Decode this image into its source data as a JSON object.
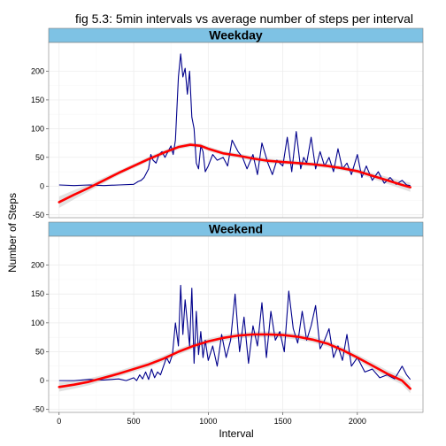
{
  "chart_data": {
    "type": "line",
    "title": "fig 5.3: 5min intervals vs average number of steps per interval",
    "xlabel": "Interval",
    "ylabel": "Number of Steps",
    "xlim": [
      -70,
      2440
    ],
    "ylim": [
      -55,
      250
    ],
    "x_ticks": [
      0,
      500,
      1000,
      1500,
      2000
    ],
    "x_tick_labels": [
      "0",
      "500",
      "1000",
      "1500",
      "2000"
    ],
    "y_ticks": [
      -50,
      0,
      50,
      100,
      150,
      200
    ],
    "y_tick_labels": [
      "-50",
      "0",
      "50",
      "100",
      "150",
      "200"
    ],
    "grid": true,
    "colors": {
      "steps_line": "#00008b",
      "smooth_line": "#ff0000",
      "ribbon": "#bebebe",
      "strip_fill": "#7ec2e4",
      "panel_border": "#7f7f7f",
      "grid": "#ebebeb"
    },
    "panels": [
      {
        "label": "Weekday",
        "series": [
          {
            "x": [
              0,
              100,
              200,
              300,
              400,
              500,
              530,
              550,
              570,
              600,
              615,
              630,
              650,
              670,
              690,
              710,
              730,
              750,
              765,
              780,
              800,
              815,
              830,
              845,
              860,
              875,
              890,
              905,
              920,
              935,
              950,
              965,
              980,
              1000,
              1030,
              1060,
              1100,
              1130,
              1160,
              1200,
              1230,
              1260,
              1300,
              1330,
              1360,
              1400,
              1430,
              1460,
              1500,
              1530,
              1560,
              1590,
              1620,
              1640,
              1660,
              1690,
              1720,
              1750,
              1780,
              1810,
              1840,
              1870,
              1900,
              1930,
              1960,
              2000,
              2030,
              2060,
              2100,
              2140,
              2180,
              2220,
              2260,
              2300,
              2330,
              2355
            ],
            "y": [
              2,
              1,
              2,
              1,
              2,
              3,
              8,
              10,
              15,
              30,
              55,
              45,
              40,
              55,
              60,
              50,
              60,
              70,
              55,
              80,
              190,
              230,
              190,
              205,
              160,
              200,
              120,
              100,
              40,
              30,
              70,
              60,
              25,
              35,
              55,
              45,
              50,
              35,
              80,
              60,
              50,
              30,
              55,
              20,
              75,
              40,
              20,
              45,
              35,
              85,
              25,
              95,
              30,
              50,
              40,
              85,
              30,
              60,
              35,
              50,
              25,
              65,
              30,
              40,
              20,
              55,
              15,
              35,
              10,
              25,
              5,
              15,
              3,
              10,
              2,
              1
            ]
          },
          {
            "name": "smooth",
            "x": [
              0,
              100,
              200,
              300,
              400,
              500,
              600,
              700,
              800,
              880,
              950,
              1000,
              1100,
              1200,
              1300,
              1400,
              1500,
              1600,
              1700,
              1800,
              1900,
              2000,
              2100,
              2200,
              2300,
              2355
            ],
            "y": [
              -28,
              -15,
              -3,
              10,
              23,
              35,
              47,
              58,
              68,
              72,
              70,
              65,
              57,
              53,
              48,
              44,
              42,
              40,
              38,
              35,
              31,
              26,
              18,
              10,
              2,
              -2
            ],
            "band": [
              10,
              8,
              6,
              5,
              4,
              4,
              4,
              4,
              4,
              4,
              4,
              4,
              4,
              4,
              4,
              4,
              4,
              4,
              4,
              4,
              4,
              4,
              5,
              6,
              7,
              8
            ]
          }
        ]
      },
      {
        "label": "Weekend",
        "series": [
          {
            "x": [
              0,
              100,
              200,
              300,
              400,
              450,
              500,
              520,
              540,
              560,
              580,
              600,
              620,
              640,
              660,
              680,
              700,
              720,
              740,
              760,
              780,
              800,
              815,
              830,
              845,
              860,
              875,
              890,
              905,
              920,
              935,
              950,
              965,
              980,
              1000,
              1030,
              1060,
              1090,
              1120,
              1150,
              1180,
              1210,
              1240,
              1270,
              1300,
              1330,
              1360,
              1390,
              1420,
              1450,
              1480,
              1510,
              1540,
              1570,
              1600,
              1630,
              1660,
              1690,
              1720,
              1750,
              1780,
              1810,
              1840,
              1870,
              1900,
              1930,
              1960,
              2000,
              2050,
              2100,
              2150,
              2200,
              2250,
              2300,
              2330,
              2355
            ],
            "y": [
              0,
              0,
              2,
              1,
              3,
              0,
              5,
              0,
              10,
              3,
              15,
              2,
              20,
              5,
              15,
              10,
              25,
              40,
              30,
              45,
              100,
              60,
              165,
              80,
              140,
              100,
              60,
              160,
              30,
              120,
              45,
              85,
              40,
              70,
              35,
              60,
              25,
              80,
              40,
              70,
              150,
              50,
              110,
              30,
              95,
              60,
              135,
              40,
              120,
              70,
              85,
              50,
              155,
              90,
              65,
              120,
              70,
              95,
              130,
              55,
              70,
              90,
              40,
              60,
              35,
              80,
              25,
              40,
              15,
              20,
              5,
              10,
              3,
              25,
              10,
              2
            ]
          },
          {
            "name": "smooth",
            "x": [
              0,
              100,
              200,
              300,
              400,
              500,
              600,
              700,
              800,
              900,
              1000,
              1100,
              1200,
              1300,
              1400,
              1500,
              1600,
              1700,
              1800,
              1900,
              2000,
              2100,
              2200,
              2300,
              2355
            ],
            "y": [
              -11,
              -7,
              -2,
              5,
              12,
              20,
              28,
              38,
              50,
              60,
              68,
              74,
              78,
              80,
              80,
              79,
              76,
              71,
              64,
              53,
              40,
              26,
              12,
              0,
              -14
            ],
            "band": [
              8,
              7,
              6,
              5,
              5,
              5,
              5,
              5,
              5,
              5,
              5,
              5,
              5,
              5,
              5,
              5,
              5,
              5,
              5,
              5,
              5,
              6,
              6,
              7,
              8
            ]
          }
        ]
      }
    ]
  }
}
